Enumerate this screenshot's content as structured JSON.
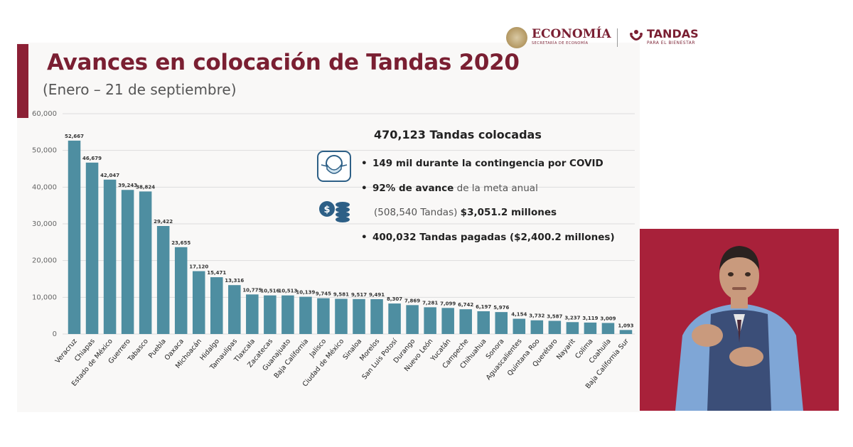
{
  "header": {
    "title": "Avances en colocación de Tandas 2020",
    "subtitle": "(Enero – 21 de septiembre)"
  },
  "logos": {
    "economia": "ECONOMÍA",
    "economia_sub": "SECRETARÍA DE ECONOMÍA",
    "tandas": "TANDAS",
    "tandas_sub": "PARA EL BIENESTAR"
  },
  "summary": {
    "headline": "470,123 Tandas colocadas",
    "b1": "149 mil durante la contingencia por COVID",
    "b2_bold": "92% de avance",
    "b2_rest": " de la meta anual",
    "b3_light": "(508,540 Tandas) ",
    "b3_bold": "$3,051.2 millones",
    "b4": "400,032 Tandas  pagadas ($2,400.2 millones)",
    "icons": [
      "face-mask-icon",
      "coins-icon"
    ]
  },
  "colors": {
    "bar": "#4e8ea1",
    "title": "#7a1f32",
    "accent": "#8c2035",
    "interpreter_bg": "#a8213a"
  },
  "chart_data": {
    "type": "bar",
    "title": "",
    "xlabel": "",
    "ylabel": "",
    "ylim": [
      0,
      60000
    ],
    "yticks": [
      "0",
      "10,000",
      "20,000",
      "30,000",
      "40,000",
      "50,000",
      "60,000"
    ],
    "grid": true,
    "categories": [
      "Veracruz",
      "Chiapas",
      "Estado de México",
      "Guerrero",
      "Tabasco",
      "Puebla",
      "Oaxaca",
      "Michoacán",
      "Hidalgo",
      "Tamaulipas",
      "Tlaxcala",
      "Zacatecas",
      "Guanajuato",
      "Baja California",
      "Jalisco",
      "Ciudad de México",
      "Sinaloa",
      "Morelos",
      "San Luis Potosí",
      "Durango",
      "Nuevo León",
      "Yucatán",
      "Campeche",
      "Chihuahua",
      "Sonora",
      "Aguascalientes",
      "Quintana Roo",
      "Querétaro",
      "Nayarit",
      "Colima",
      "Coahuila",
      "Baja California Sur"
    ],
    "values": [
      52667,
      46679,
      42047,
      39243,
      38824,
      29422,
      23655,
      17120,
      15471,
      13316,
      10775,
      10516,
      10513,
      10139,
      9745,
      9581,
      9517,
      9491,
      8307,
      7869,
      7281,
      7099,
      6742,
      6197,
      5976,
      4154,
      3732,
      3587,
      3237,
      3119,
      3009,
      1093
    ],
    "value_labels": [
      "52,667",
      "46,679",
      "42,047",
      "39,243",
      "38,824",
      "29,422",
      "23,655",
      "17,120",
      "15,471",
      "13,316",
      "10,775",
      "10,516",
      "10,513",
      "10,139",
      "9,745",
      "9,581",
      "9,517",
      "9,491",
      "8,307",
      "7,869",
      "7,281",
      "7,099",
      "6,742",
      "6,197",
      "5,976",
      "4,154",
      "3,732",
      "3,587",
      "3,237",
      "3,119",
      "3,009",
      "1,093"
    ]
  }
}
